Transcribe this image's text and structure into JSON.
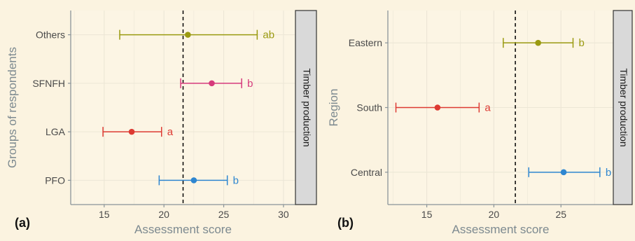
{
  "colors": {
    "background": "#fbf3e0",
    "panel_background": "#fcf5e4",
    "grid": "#ece6d6",
    "axis": "#8a9499",
    "axis_title": "#7d8a90",
    "tick_label": "#4a4a4a",
    "strip_fill": "#d9d9d9",
    "reference_line": "#000000"
  },
  "chart_data": [
    {
      "type": "errorbar",
      "panel_label": "(a)",
      "strip_label": "Timber production",
      "xlabel": "Assessment score",
      "ylabel": "Groups of respondents",
      "xlim": [
        12.2,
        31
      ],
      "xticks": [
        15,
        20,
        25,
        30
      ],
      "reference_x": 21.6,
      "grid": true,
      "categories": [
        "PFO",
        "LGA",
        "SFNFH",
        "Others"
      ],
      "points": [
        {
          "category": "PFO",
          "mean": 22.5,
          "low": 19.6,
          "high": 25.3,
          "letter": "b",
          "color": "#2e86d0"
        },
        {
          "category": "LGA",
          "mean": 17.3,
          "low": 14.9,
          "high": 19.8,
          "letter": "a",
          "color": "#dd3a32"
        },
        {
          "category": "SFNFH",
          "mean": 24.0,
          "low": 21.4,
          "high": 26.5,
          "letter": "b",
          "color": "#d63a7c"
        },
        {
          "category": "Others",
          "mean": 22.0,
          "low": 16.3,
          "high": 27.8,
          "letter": "ab",
          "color": "#9a9a10"
        }
      ]
    },
    {
      "type": "errorbar",
      "panel_label": "(b)",
      "strip_label": "Timber production",
      "xlabel": "Assessment score",
      "ylabel": "Region",
      "xlim": [
        12.1,
        28.9
      ],
      "xticks": [
        15,
        20,
        25
      ],
      "reference_x": 21.6,
      "grid": true,
      "categories": [
        "Central",
        "South",
        "Eastern"
      ],
      "points": [
        {
          "category": "Central",
          "mean": 25.2,
          "low": 22.6,
          "high": 27.9,
          "letter": "b",
          "color": "#2e86d0"
        },
        {
          "category": "South",
          "mean": 15.8,
          "low": 12.7,
          "high": 18.9,
          "letter": "a",
          "color": "#dd3a32"
        },
        {
          "category": "Eastern",
          "mean": 23.3,
          "low": 20.7,
          "high": 25.9,
          "letter": "b",
          "color": "#9a9a10"
        }
      ]
    }
  ]
}
